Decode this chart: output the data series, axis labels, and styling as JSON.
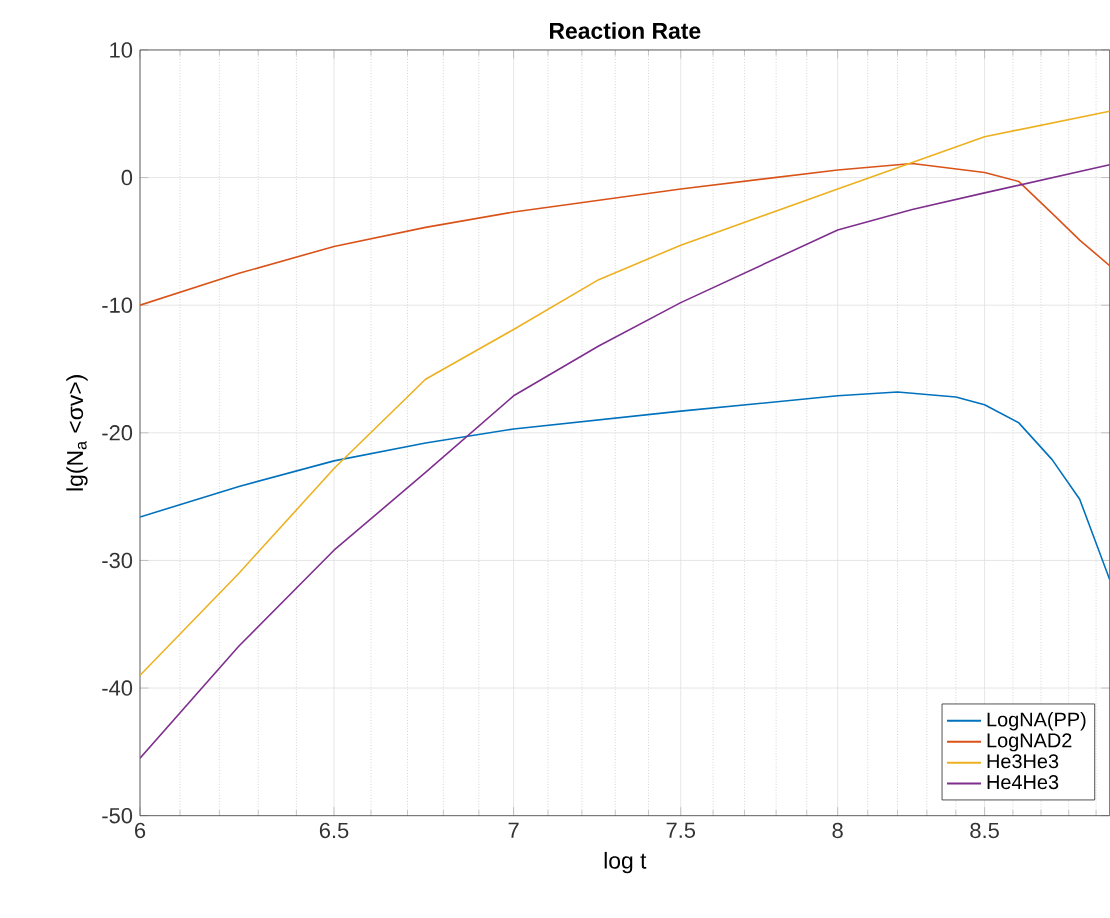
{
  "chart_data": {
    "type": "line",
    "title": "Reaction Rate",
    "xlabel": "log t",
    "ylabel": "lg(N$_{a}$ <σv>)",
    "log": "x",
    "xlim": [
      6,
      8.95
    ],
    "ylim": [
      -50,
      10
    ],
    "xticks": [
      6,
      6.5,
      7,
      7.5,
      8,
      8.5
    ],
    "yticks": [
      -50,
      -40,
      -30,
      -20,
      -10,
      0,
      10
    ],
    "grid": true,
    "legend": "bottom right",
    "series": [
      {
        "name": "LogNA(PP)",
        "color": "#0072bd",
        "x": [
          6,
          6.25,
          6.5,
          6.75,
          7,
          7.5,
          8,
          8.2,
          8.4,
          8.5,
          8.62,
          8.74,
          8.84,
          8.95
        ],
        "values": [
          -26.6,
          -24.2,
          -22.2,
          -20.8,
          -19.7,
          -18.3,
          -17.1,
          -16.8,
          -17.2,
          -17.8,
          -19.2,
          -22.1,
          -25.2,
          -31.5
        ]
      },
      {
        "name": "LogNAD2",
        "color": "#d95319",
        "x": [
          6,
          6.25,
          6.5,
          6.75,
          7,
          7.5,
          8,
          8.25,
          8.5,
          8.62,
          8.74,
          8.84,
          8.95
        ],
        "values": [
          -10,
          -7.5,
          -5.4,
          -3.9,
          -2.7,
          -0.9,
          0.6,
          1.1,
          0.4,
          -0.3,
          -2.8,
          -4.9,
          -6.9
        ]
      },
      {
        "name": "He3He3",
        "color": "#edb120",
        "x": [
          6,
          6.25,
          6.5,
          6.75,
          7,
          7.25,
          7.5,
          8,
          8.5,
          8.95
        ],
        "values": [
          -39,
          -31,
          -22.8,
          -15.8,
          -11.9,
          -8,
          -5.3,
          -0.9,
          3.2,
          5.2
        ]
      },
      {
        "name": "He4He3",
        "color": "#7e2f8e",
        "x": [
          6,
          6.25,
          6.5,
          6.75,
          7,
          7.25,
          7.5,
          8,
          8.25,
          8.5,
          8.95
        ],
        "values": [
          -45.5,
          -36.7,
          -29.2,
          -23.1,
          -17.1,
          -13.2,
          -9.8,
          -4.1,
          -2.5,
          -1.2,
          1.0
        ]
      }
    ]
  }
}
